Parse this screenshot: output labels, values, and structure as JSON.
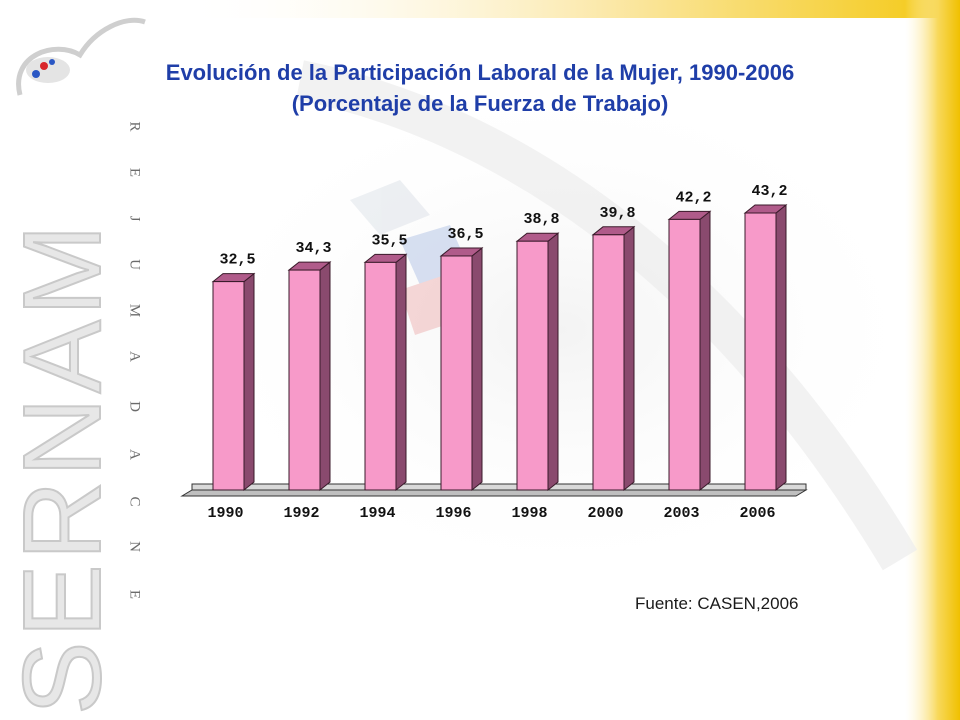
{
  "slide": {
    "logo_text": "SERNAM",
    "tagline": "EN CADA MUJER",
    "source": "Fuente: CASEN,2006",
    "colors": {
      "title": "#1f3ea8",
      "bar_front": "#f79ac9",
      "bar_side": "#8a4a6e",
      "bar_top": "#b05b8a",
      "sidebar": "#f2c200"
    }
  },
  "chart_data": {
    "type": "bar",
    "title": "Evolución de la Participación Laboral de la Mujer, 1990-2006",
    "subtitle": "(Porcentaje de la Fuerza de Trabajo)",
    "categories": [
      "1990",
      "1992",
      "1994",
      "1996",
      "1998",
      "2000",
      "2003",
      "2006"
    ],
    "values": [
      32.5,
      34.3,
      35.5,
      36.5,
      38.8,
      39.8,
      42.2,
      43.2
    ],
    "data_labels": [
      "32,5",
      "34,3",
      "35,5",
      "36,5",
      "38,8",
      "39,8",
      "42,2",
      "43,2"
    ],
    "style": "3d",
    "grid": false,
    "legend": "none"
  }
}
